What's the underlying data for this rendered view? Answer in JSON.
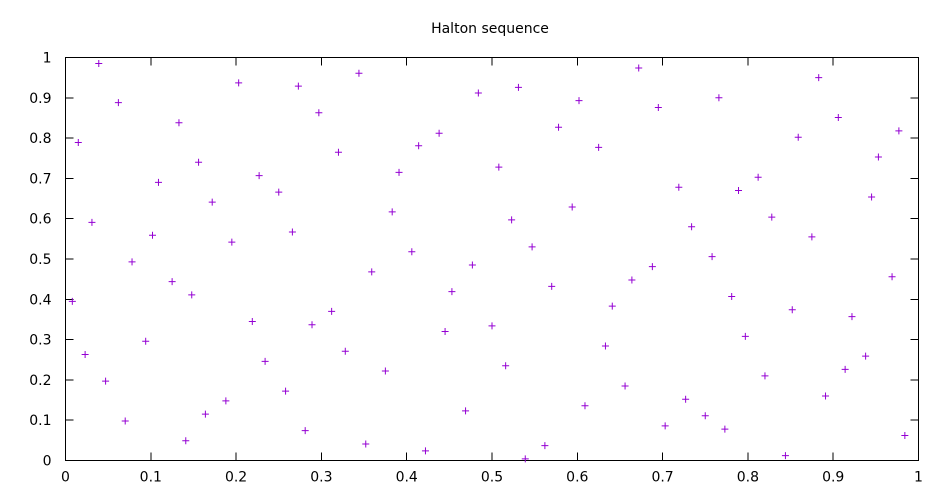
{
  "chart_data": {
    "type": "scatter",
    "title": "Halton sequence",
    "xlabel": "",
    "ylabel": "",
    "xlim": [
      0,
      1
    ],
    "ylim": [
      0,
      1
    ],
    "grid": false,
    "legend": "none",
    "marker": "+",
    "color": "#9400d3",
    "xticks": [
      "0",
      "0.1",
      "0.2",
      "0.3",
      "0.4",
      "0.5",
      "0.6",
      "0.7",
      "0.8",
      "0.9",
      "1"
    ],
    "yticks": [
      "0",
      "0.1",
      "0.2",
      "0.3",
      "0.4",
      "0.5",
      "0.6",
      "0.7",
      "0.8",
      "0.9",
      "1"
    ],
    "series": [
      {
        "points": [
          [
            0.008,
            0.395
          ],
          [
            0.015,
            0.789
          ],
          [
            0.023,
            0.263
          ],
          [
            0.031,
            0.591
          ],
          [
            0.039,
            0.985
          ],
          [
            0.047,
            0.197
          ],
          [
            0.062,
            0.888
          ],
          [
            0.07,
            0.098
          ],
          [
            0.078,
            0.493
          ],
          [
            0.094,
            0.296
          ],
          [
            0.102,
            0.559
          ],
          [
            0.109,
            0.69
          ],
          [
            0.125,
            0.444
          ],
          [
            0.133,
            0.838
          ],
          [
            0.141,
            0.049
          ],
          [
            0.148,
            0.411
          ],
          [
            0.156,
            0.74
          ],
          [
            0.164,
            0.115
          ],
          [
            0.172,
            0.641
          ],
          [
            0.188,
            0.148
          ],
          [
            0.195,
            0.542
          ],
          [
            0.203,
            0.937
          ],
          [
            0.219,
            0.345
          ],
          [
            0.227,
            0.707
          ],
          [
            0.234,
            0.246
          ],
          [
            0.25,
            0.666
          ],
          [
            0.258,
            0.172
          ],
          [
            0.266,
            0.567
          ],
          [
            0.273,
            0.929
          ],
          [
            0.281,
            0.074
          ],
          [
            0.289,
            0.337
          ],
          [
            0.297,
            0.863
          ],
          [
            0.312,
            0.37
          ],
          [
            0.32,
            0.765
          ],
          [
            0.328,
            0.271
          ],
          [
            0.344,
            0.961
          ],
          [
            0.352,
            0.041
          ],
          [
            0.359,
            0.468
          ],
          [
            0.375,
            0.222
          ],
          [
            0.383,
            0.617
          ],
          [
            0.391,
            0.715
          ],
          [
            0.406,
            0.518
          ],
          [
            0.414,
            0.781
          ],
          [
            0.422,
            0.024
          ],
          [
            0.438,
            0.812
          ],
          [
            0.445,
            0.32
          ],
          [
            0.453,
            0.419
          ],
          [
            0.469,
            0.123
          ],
          [
            0.477,
            0.485
          ],
          [
            0.484,
            0.912
          ],
          [
            0.5,
            0.334
          ],
          [
            0.508,
            0.728
          ],
          [
            0.516,
            0.235
          ],
          [
            0.523,
            0.597
          ],
          [
            0.531,
            0.926
          ],
          [
            0.539,
            0.004
          ],
          [
            0.547,
            0.53
          ],
          [
            0.562,
            0.037
          ],
          [
            0.57,
            0.432
          ],
          [
            0.578,
            0.827
          ],
          [
            0.594,
            0.629
          ],
          [
            0.602,
            0.893
          ],
          [
            0.609,
            0.136
          ],
          [
            0.625,
            0.777
          ],
          [
            0.633,
            0.284
          ],
          [
            0.641,
            0.383
          ],
          [
            0.656,
            0.185
          ],
          [
            0.664,
            0.448
          ],
          [
            0.672,
            0.974
          ],
          [
            0.688,
            0.481
          ],
          [
            0.695,
            0.876
          ],
          [
            0.703,
            0.086
          ],
          [
            0.719,
            0.678
          ],
          [
            0.727,
            0.152
          ],
          [
            0.734,
            0.58
          ],
          [
            0.75,
            0.111
          ],
          [
            0.758,
            0.506
          ],
          [
            0.766,
            0.9
          ],
          [
            0.773,
            0.078
          ],
          [
            0.781,
            0.407
          ],
          [
            0.789,
            0.67
          ],
          [
            0.797,
            0.308
          ],
          [
            0.812,
            0.703
          ],
          [
            0.82,
            0.21
          ],
          [
            0.828,
            0.604
          ],
          [
            0.844,
            0.012
          ],
          [
            0.852,
            0.374
          ],
          [
            0.859,
            0.802
          ],
          [
            0.875,
            0.555
          ],
          [
            0.883,
            0.95
          ],
          [
            0.891,
            0.16
          ],
          [
            0.906,
            0.851
          ],
          [
            0.914,
            0.226
          ],
          [
            0.922,
            0.357
          ],
          [
            0.938,
            0.259
          ],
          [
            0.945,
            0.654
          ],
          [
            0.953,
            0.753
          ],
          [
            0.969,
            0.456
          ],
          [
            0.977,
            0.818
          ],
          [
            0.984,
            0.062
          ]
        ]
      }
    ]
  }
}
